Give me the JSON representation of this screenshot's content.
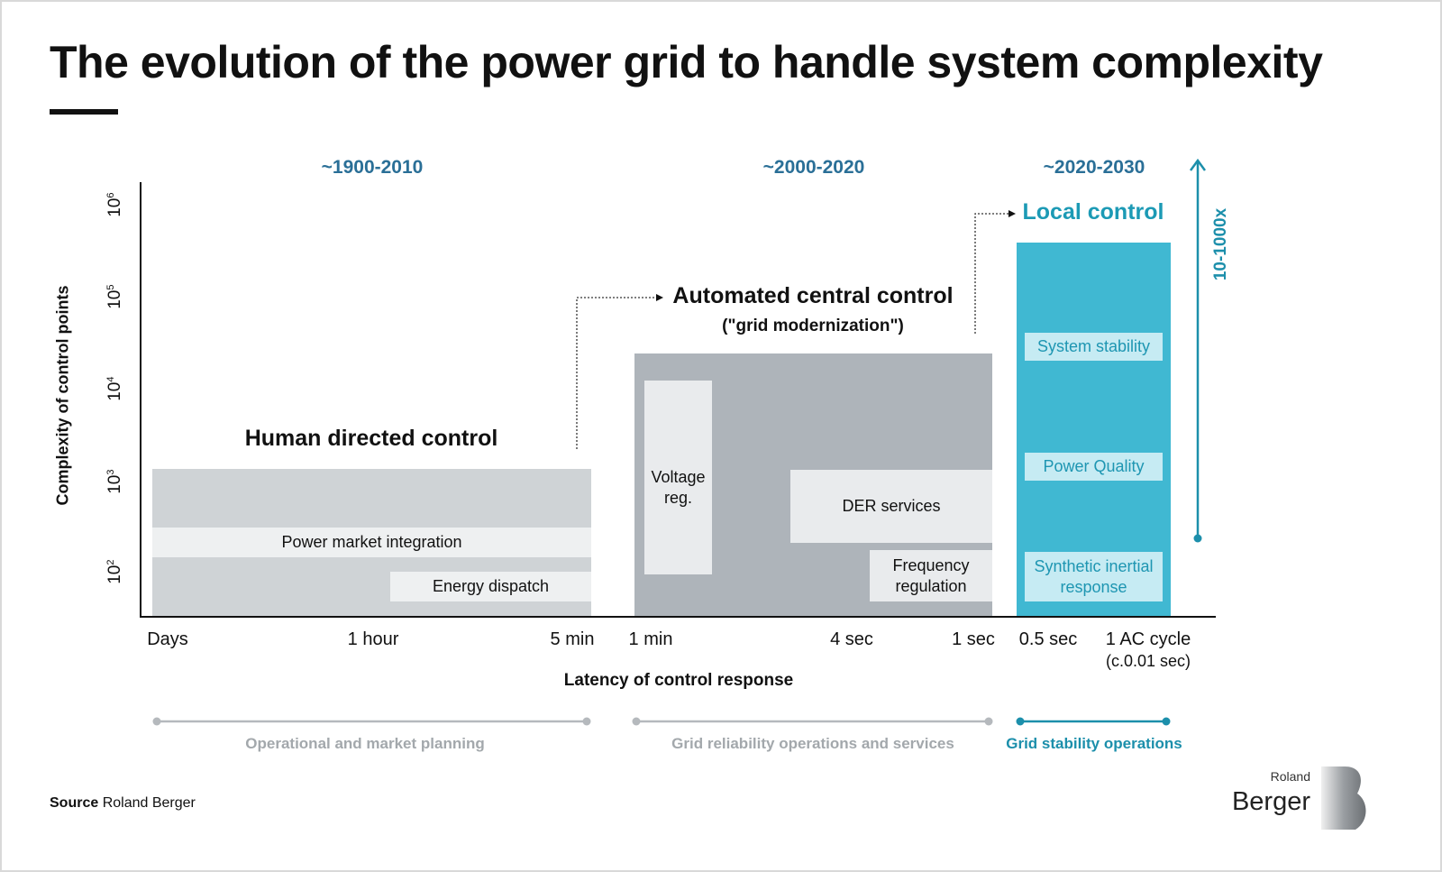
{
  "title": "The evolution of the power grid to handle system complexity",
  "eras": [
    "~1900-2010",
    "~2000-2020",
    "~2020-2030"
  ],
  "y_axis": {
    "label": "Complexity of control points",
    "ticks": [
      "10",
      "10",
      "10",
      "10",
      "10"
    ],
    "exponents": [
      "6",
      "5",
      "4",
      "3",
      "2"
    ]
  },
  "x_axis": {
    "label": "Latency of control response",
    "ticks": [
      "Days",
      "1 hour",
      "5 min",
      "1 min",
      "4 sec",
      "1 sec",
      "0.5 sec",
      "1 AC cycle"
    ],
    "ac_cycle_note": "(c.0.01 sec)"
  },
  "phases": {
    "human": {
      "title": "Human directed control",
      "items": [
        "Power market integration",
        "Energy dispatch"
      ]
    },
    "automated": {
      "title": "Automated central control",
      "subtitle": "(\"grid modernization\")",
      "items": [
        "Voltage reg.",
        "DER services",
        "Frequency regulation"
      ]
    },
    "local": {
      "title": "Local control",
      "items": [
        "System stability",
        "Power Quality",
        "Synthetic inertial response"
      ]
    }
  },
  "growth_label": "10-1000x",
  "timeline": [
    "Operational and market planning",
    "Grid reliability operations and services",
    "Grid stability operations"
  ],
  "source": {
    "label": "Source",
    "value": "Roland Berger"
  },
  "logo": {
    "line1": "Roland",
    "line2": "Berger"
  },
  "colors": {
    "era_blue": "#2a6f97",
    "teal": "#1c9ab5",
    "local_block": "#40b8d2",
    "human_block": "#cfd3d6",
    "automated_block": "#aeb4ba"
  }
}
